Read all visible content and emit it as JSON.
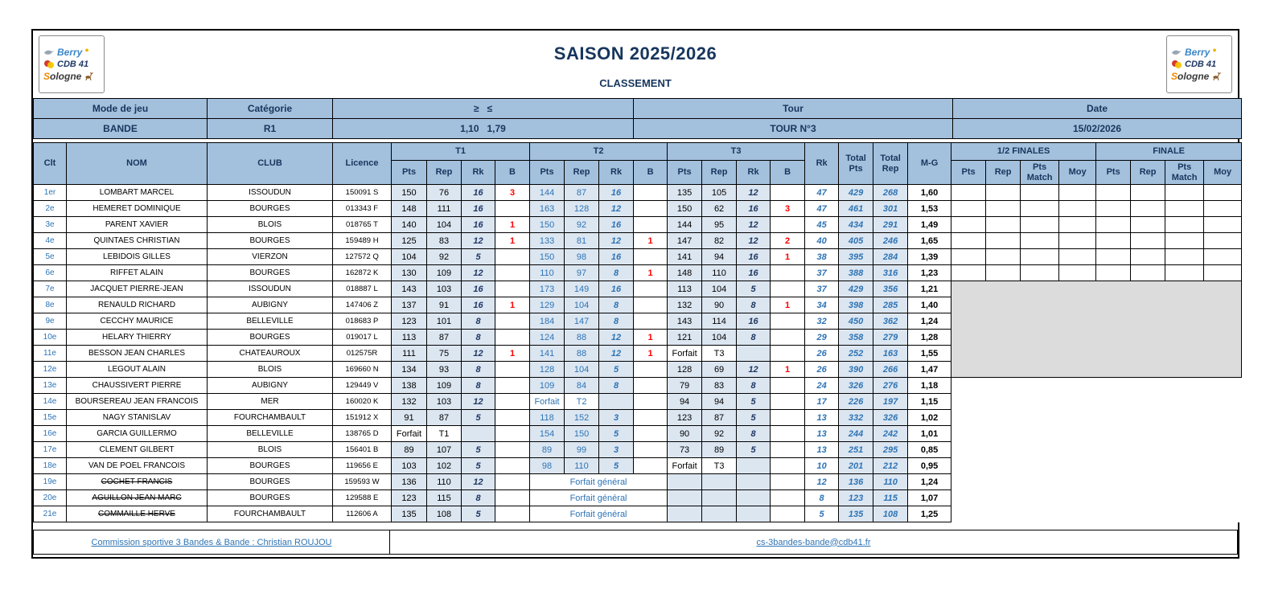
{
  "colors": {
    "header_fill": "#A3C0DD",
    "tint_fill": "#DCE6F1",
    "dark_blue_text": "#17365D",
    "value_blue_text": "#2E74B5",
    "bonus_red": "#FF0000",
    "unqualified_gray": "#DCDCDC"
  },
  "logos": {
    "berry": "Berry",
    "cdb": "CDB 41",
    "sologne_s": "S",
    "sologne_rest": "ologne"
  },
  "header": {
    "title": "SAISON 2025/2026",
    "subtitle": "CLASSEMENT"
  },
  "meta": {
    "labels": {
      "mode": "Mode de jeu",
      "categorie": "Catégorie",
      "range": "≥   ≤",
      "tour": "Tour",
      "date": "Date"
    },
    "values": {
      "mode": "BANDE",
      "categorie": "R1",
      "range": "1,10   1,79",
      "tour": "TOUR N°3",
      "date": "15/02/2026"
    }
  },
  "table": {
    "col_headers": {
      "clt": "Clt",
      "nom": "NOM",
      "club": "CLUB",
      "licence": "Licence",
      "t1": "T1",
      "t2": "T2",
      "t3": "T3",
      "pts": "Pts",
      "rep": "Rep",
      "rk": "Rk",
      "b": "B",
      "rk_total": "Rk",
      "total_pts": "Total Pts",
      "total_rep": "Total Rep",
      "mg": "M-G",
      "demi": "1/2 FINALES",
      "finale": "FINALE",
      "pts_match": "Pts Match",
      "moy": "Moy"
    },
    "forfait_general_label": "Forfait général",
    "rows": [
      {
        "clt": "1er",
        "nom": "LOMBART MARCEL",
        "club": "ISSOUDUN",
        "licence": "150091 S",
        "t1": [
          "150",
          "76",
          "16",
          "3"
        ],
        "t2": [
          "144",
          "87",
          "16",
          ""
        ],
        "t3": [
          "135",
          "105",
          "12",
          ""
        ],
        "rk": "47",
        "total_pts": "429",
        "total_rep": "268",
        "mg": "1,60",
        "struck": false,
        "finals": "cells"
      },
      {
        "clt": "2e",
        "nom": "HEMERET DOMINIQUE",
        "club": "BOURGES",
        "licence": "013343 F",
        "t1": [
          "148",
          "111",
          "16",
          ""
        ],
        "t2": [
          "163",
          "128",
          "12",
          ""
        ],
        "t3": [
          "150",
          "62",
          "16",
          "3"
        ],
        "rk": "47",
        "total_pts": "461",
        "total_rep": "301",
        "mg": "1,53",
        "struck": false,
        "finals": "cells"
      },
      {
        "clt": "3e",
        "nom": "PARENT XAVIER",
        "club": "BLOIS",
        "licence": "018765 T",
        "t1": [
          "140",
          "104",
          "16",
          "1"
        ],
        "t2": [
          "150",
          "92",
          "16",
          ""
        ],
        "t3": [
          "144",
          "95",
          "12",
          ""
        ],
        "rk": "45",
        "total_pts": "434",
        "total_rep": "291",
        "mg": "1,49",
        "struck": false,
        "finals": "cells"
      },
      {
        "clt": "4e",
        "nom": "QUINTAES CHRISTIAN",
        "club": "BOURGES",
        "licence": "159489 H",
        "t1": [
          "125",
          "83",
          "12",
          "1"
        ],
        "t2": [
          "133",
          "81",
          "12",
          "1"
        ],
        "t3": [
          "147",
          "82",
          "12",
          "2"
        ],
        "rk": "40",
        "total_pts": "405",
        "total_rep": "246",
        "mg": "1,65",
        "struck": false,
        "finals": "cells"
      },
      {
        "clt": "5e",
        "nom": "LEBIDOIS GILLES",
        "club": "VIERZON",
        "licence": "127572 Q",
        "t1": [
          "104",
          "92",
          "5",
          ""
        ],
        "t2": [
          "150",
          "98",
          "16",
          ""
        ],
        "t3": [
          "141",
          "94",
          "16",
          "1"
        ],
        "rk": "38",
        "total_pts": "395",
        "total_rep": "284",
        "mg": "1,39",
        "struck": false,
        "finals": "cells"
      },
      {
        "clt": "6e",
        "nom": "RIFFET ALAIN",
        "club": "BOURGES",
        "licence": "162872 K",
        "t1": [
          "130",
          "109",
          "12",
          ""
        ],
        "t2": [
          "110",
          "97",
          "8",
          "1"
        ],
        "t3": [
          "148",
          "110",
          "16",
          ""
        ],
        "rk": "37",
        "total_pts": "388",
        "total_rep": "316",
        "mg": "1,23",
        "struck": false,
        "finals": "cells"
      },
      {
        "clt": "7e",
        "nom": "JACQUET PIERRE-JEAN",
        "club": "ISSOUDUN",
        "licence": "018887 L",
        "t1": [
          "143",
          "103",
          "16",
          ""
        ],
        "t2": [
          "173",
          "149",
          "16",
          ""
        ],
        "t3": [
          "113",
          "104",
          "5",
          ""
        ],
        "rk": "37",
        "total_pts": "429",
        "total_rep": "356",
        "mg": "1,21",
        "struck": false,
        "finals": "gray-start"
      },
      {
        "clt": "8e",
        "nom": "RENAULD RICHARD",
        "club": "AUBIGNY",
        "licence": "147406 Z",
        "t1": [
          "137",
          "91",
          "16",
          "1"
        ],
        "t2": [
          "129",
          "104",
          "8",
          ""
        ],
        "t3": [
          "132",
          "90",
          "8",
          "1"
        ],
        "rk": "34",
        "total_pts": "398",
        "total_rep": "285",
        "mg": "1,40",
        "struck": false,
        "finals": "covered"
      },
      {
        "clt": "9e",
        "nom": "CECCHY MAURICE",
        "club": "BELLEVILLE",
        "licence": "018683 P",
        "t1": [
          "123",
          "101",
          "8",
          ""
        ],
        "t2": [
          "184",
          "147",
          "8",
          ""
        ],
        "t3": [
          "143",
          "114",
          "16",
          ""
        ],
        "rk": "32",
        "total_pts": "450",
        "total_rep": "362",
        "mg": "1,24",
        "struck": false,
        "finals": "covered"
      },
      {
        "clt": "10e",
        "nom": "HELARY THIERRY",
        "club": "BOURGES",
        "licence": "019017 L",
        "t1": [
          "113",
          "87",
          "8",
          ""
        ],
        "t2": [
          "124",
          "88",
          "12",
          "1"
        ],
        "t3": [
          "121",
          "104",
          "8",
          ""
        ],
        "rk": "29",
        "total_pts": "358",
        "total_rep": "279",
        "mg": "1,28",
        "struck": false,
        "finals": "covered"
      },
      {
        "clt": "11e",
        "nom": "BESSON JEAN CHARLES",
        "club": "CHATEAUROUX",
        "licence": "012575R",
        "t1": [
          "111",
          "75",
          "12",
          "1"
        ],
        "t2": [
          "141",
          "88",
          "12",
          "1"
        ],
        "t3": [
          "Forfait",
          "T3",
          "",
          ""
        ],
        "rk": "26",
        "total_pts": "252",
        "total_rep": "163",
        "mg": "1,55",
        "struck": false,
        "finals": "covered"
      },
      {
        "clt": "12e",
        "nom": "LEGOUT ALAIN",
        "club": "BLOIS",
        "licence": "169660 N",
        "t1": [
          "134",
          "93",
          "8",
          ""
        ],
        "t2": [
          "128",
          "104",
          "5",
          ""
        ],
        "t3": [
          "128",
          "69",
          "12",
          "1"
        ],
        "rk": "26",
        "total_pts": "390",
        "total_rep": "266",
        "mg": "1,47",
        "struck": false,
        "finals": "covered"
      },
      {
        "clt": "13e",
        "nom": "CHAUSSIVERT PIERRE",
        "club": "AUBIGNY",
        "licence": "129449 V",
        "t1": [
          "138",
          "109",
          "8",
          ""
        ],
        "t2": [
          "109",
          "84",
          "8",
          ""
        ],
        "t3": [
          "79",
          "83",
          "8",
          ""
        ],
        "rk": "24",
        "total_pts": "326",
        "total_rep": "276",
        "mg": "1,18",
        "struck": false,
        "finals": "none"
      },
      {
        "clt": "14e",
        "nom": "BOURSEREAU JEAN FRANCOIS",
        "club": "MER",
        "licence": "160020 K",
        "t1": [
          "132",
          "103",
          "12",
          ""
        ],
        "t2": [
          "Forfait",
          "T2",
          "",
          ""
        ],
        "t3": [
          "94",
          "94",
          "5",
          ""
        ],
        "rk": "17",
        "total_pts": "226",
        "total_rep": "197",
        "mg": "1,15",
        "struck": false,
        "finals": "none"
      },
      {
        "clt": "15e",
        "nom": "NAGY STANISLAV",
        "club": "FOURCHAMBAULT",
        "licence": "151912 X",
        "t1": [
          "91",
          "87",
          "5",
          ""
        ],
        "t2": [
          "118",
          "152",
          "3",
          ""
        ],
        "t3": [
          "123",
          "87",
          "5",
          ""
        ],
        "rk": "13",
        "total_pts": "332",
        "total_rep": "326",
        "mg": "1,02",
        "struck": false,
        "finals": "none"
      },
      {
        "clt": "16e",
        "nom": "GARCIA GUILLERMO",
        "club": "BELLEVILLE",
        "licence": "138765 D",
        "t1": [
          "Forfait",
          "T1",
          "",
          ""
        ],
        "t2": [
          "154",
          "150",
          "5",
          ""
        ],
        "t3": [
          "90",
          "92",
          "8",
          ""
        ],
        "rk": "13",
        "total_pts": "244",
        "total_rep": "242",
        "mg": "1,01",
        "struck": false,
        "finals": "none"
      },
      {
        "clt": "17e",
        "nom": "CLEMENT GILBERT",
        "club": "BLOIS",
        "licence": "156401 B",
        "t1": [
          "89",
          "107",
          "5",
          ""
        ],
        "t2": [
          "89",
          "99",
          "3",
          ""
        ],
        "t3": [
          "73",
          "89",
          "5",
          ""
        ],
        "rk": "13",
        "total_pts": "251",
        "total_rep": "295",
        "mg": "0,85",
        "struck": false,
        "finals": "none"
      },
      {
        "clt": "18e",
        "nom": "VAN DE POEL FRANCOIS",
        "club": "BOURGES",
        "licence": "119656 E",
        "t1": [
          "103",
          "102",
          "5",
          ""
        ],
        "t2": [
          "98",
          "110",
          "5",
          ""
        ],
        "t3": [
          "Forfait",
          "T3",
          "",
          ""
        ],
        "rk": "10",
        "total_pts": "201",
        "total_rep": "212",
        "mg": "0,95",
        "struck": false,
        "finals": "none"
      },
      {
        "clt": "19e",
        "nom": "COCHET FRANCIS",
        "club": "BOURGES",
        "licence": "159593 W",
        "t1": [
          "136",
          "110",
          "12",
          ""
        ],
        "t2": "general",
        "t3": [
          "",
          "",
          "",
          ""
        ],
        "rk": "12",
        "total_pts": "136",
        "total_rep": "110",
        "mg": "1,24",
        "struck": true,
        "finals": "none"
      },
      {
        "clt": "20e",
        "nom": "AGUILLON JEAN MARC",
        "club": "BOURGES",
        "licence": "129588 E",
        "t1": [
          "123",
          "115",
          "8",
          ""
        ],
        "t2": "general",
        "t3": [
          "",
          "",
          "",
          ""
        ],
        "rk": "8",
        "total_pts": "123",
        "total_rep": "115",
        "mg": "1,07",
        "struck": true,
        "finals": "none"
      },
      {
        "clt": "21e",
        "nom": "COMMAILLE HERVE",
        "club": "FOURCHAMBAULT",
        "licence": "112606 A",
        "t1": [
          "135",
          "108",
          "5",
          ""
        ],
        "t2": "general",
        "t3": [
          "",
          "",
          "",
          ""
        ],
        "rk": "5",
        "total_pts": "135",
        "total_rep": "108",
        "mg": "1,25",
        "struck": true,
        "finals": "none"
      }
    ]
  },
  "footer": {
    "commission": "Commission sportive 3 Bandes & Bande : Christian ROUJOU",
    "email": "cs-3bandes-bande@cdb41.fr"
  }
}
